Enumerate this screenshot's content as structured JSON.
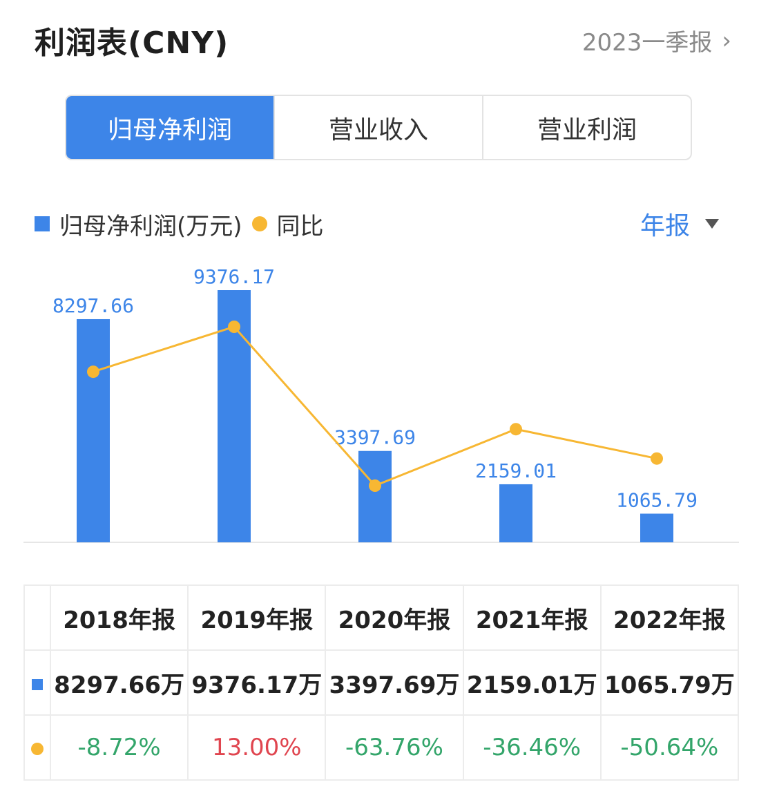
{
  "header": {
    "title": "利润表(CNY)",
    "period": "2023一季报",
    "chevron": "›"
  },
  "tabs": [
    {
      "label": "归母净利润",
      "active": true
    },
    {
      "label": "营业收入",
      "active": false
    },
    {
      "label": "营业利润",
      "active": false
    }
  ],
  "legend": {
    "bar_label": "归母净利润(万元)",
    "line_label": "同比",
    "period_select": "年报"
  },
  "colors": {
    "bar": "#3d85e8",
    "line": "#f7b733",
    "positive": "#e0454f",
    "negative": "#33a56a"
  },
  "chart_data": {
    "type": "bar",
    "categories": [
      "2018年报",
      "2019年报",
      "2020年报",
      "2021年报",
      "2022年报"
    ],
    "series": [
      {
        "name": "归母净利润(万元)",
        "type": "bar",
        "values": [
          8297.66,
          9376.17,
          3397.69,
          2159.01,
          1065.79
        ]
      },
      {
        "name": "同比",
        "type": "line",
        "values": [
          -8.72,
          13.0,
          -63.76,
          -36.46,
          -50.64
        ]
      }
    ],
    "data_labels": [
      "8297.66",
      "9376.17",
      "3397.69",
      "2159.01",
      "1065.79"
    ],
    "grid": false,
    "legend_position": "top-left"
  },
  "table": {
    "headers": [
      "2018年报",
      "2019年报",
      "2020年报",
      "2021年报",
      "2022年报"
    ],
    "values": [
      "8297.66万",
      "9376.17万",
      "3397.69万",
      "2159.01万",
      "1065.79万"
    ],
    "yoy": [
      "-8.72%",
      "13.00%",
      "-63.76%",
      "-36.46%",
      "-50.64%"
    ]
  }
}
